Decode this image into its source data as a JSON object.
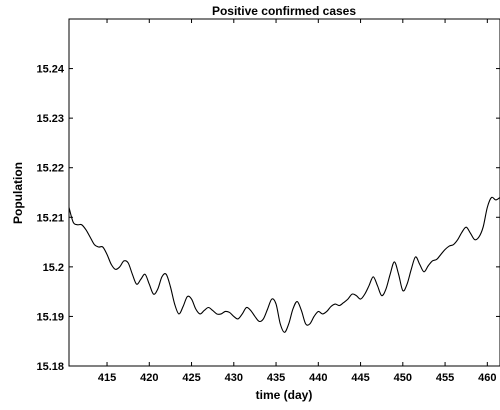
{
  "chart_data": {
    "type": "line",
    "title": "Positive confirmed cases",
    "xlabel": "time (day)",
    "ylabel": "Population",
    "xlim": [
      410.5,
      461.5
    ],
    "ylim": [
      15.18,
      15.25
    ],
    "xticks": [
      415,
      420,
      425,
      430,
      435,
      440,
      445,
      450,
      455,
      460
    ],
    "xtick_labels": [
      "415",
      "420",
      "425",
      "430",
      "435",
      "440",
      "445",
      "450",
      "455",
      "460"
    ],
    "yticks": [
      15.18,
      15.19,
      15.2,
      15.21,
      15.22,
      15.23,
      15.24
    ],
    "ytick_labels": [
      "15.18",
      "15.19",
      "15.2",
      "15.21",
      "15.22",
      "15.23",
      "15.24"
    ],
    "grid": false,
    "series": [
      {
        "color": "#000000",
        "x": [
          410.5,
          411.0,
          411.5,
          412.0,
          412.5,
          413.0,
          413.5,
          414.0,
          414.5,
          415.0,
          415.5,
          416.0,
          416.5,
          417.0,
          417.5,
          418.0,
          418.5,
          419.0,
          419.5,
          420.0,
          420.5,
          421.0,
          421.5,
          422.0,
          422.5,
          423.0,
          423.5,
          424.0,
          424.5,
          425.0,
          425.5,
          426.0,
          426.5,
          427.0,
          427.5,
          428.0,
          428.5,
          429.0,
          429.5,
          430.0,
          430.5,
          431.0,
          431.5,
          432.0,
          432.5,
          433.0,
          433.5,
          434.0,
          434.5,
          435.0,
          435.5,
          436.0,
          436.5,
          437.0,
          437.5,
          438.0,
          438.5,
          439.0,
          439.5,
          440.0,
          440.5,
          441.0,
          441.5,
          442.0,
          442.5,
          443.0,
          443.5,
          444.0,
          444.5,
          445.0,
          445.5,
          446.0,
          446.5,
          447.0,
          447.5,
          448.0,
          448.5,
          449.0,
          449.5,
          450.0,
          450.5,
          451.0,
          451.5,
          452.0,
          452.5,
          453.0,
          453.5,
          454.0,
          454.5,
          455.0,
          455.5,
          456.0,
          456.5,
          457.0,
          457.5,
          458.0,
          458.5,
          459.0,
          459.5,
          460.0,
          460.5,
          461.0,
          461.5
        ],
        "y": [
          15.212,
          15.209,
          15.2085,
          15.2085,
          15.2075,
          15.206,
          15.2045,
          15.204,
          15.204,
          15.2025,
          15.2005,
          15.1995,
          15.2,
          15.2012,
          15.2008,
          15.1985,
          15.1965,
          15.1975,
          15.1985,
          15.1965,
          15.1945,
          15.1955,
          15.198,
          15.1985,
          15.196,
          15.1925,
          15.1905,
          15.192,
          15.194,
          15.1935,
          15.1915,
          15.1905,
          15.1912,
          15.1918,
          15.1912,
          15.1905,
          15.1905,
          15.191,
          15.1908,
          15.19,
          15.1895,
          15.1905,
          15.1918,
          15.1912,
          15.19,
          15.189,
          15.1895,
          15.1915,
          15.1935,
          15.1925,
          15.1885,
          15.1868,
          15.1885,
          15.1915,
          15.193,
          15.1912,
          15.1885,
          15.1885,
          15.19,
          15.191,
          15.1905,
          15.191,
          15.192,
          15.1925,
          15.1922,
          15.1928,
          15.1935,
          15.1945,
          15.1942,
          15.1935,
          15.1945,
          15.1962,
          15.198,
          15.1962,
          15.1942,
          15.1955,
          15.1985,
          15.201,
          15.1985,
          15.1952,
          15.1965,
          15.1995,
          15.202,
          15.2005,
          15.199,
          15.2002,
          15.2012,
          15.2015,
          15.2025,
          15.2035,
          15.2042,
          15.2045,
          15.2055,
          15.207,
          15.208,
          15.2068,
          15.2055,
          15.206,
          15.208,
          15.212,
          15.214,
          15.2135,
          15.214
        ]
      }
    ]
  }
}
